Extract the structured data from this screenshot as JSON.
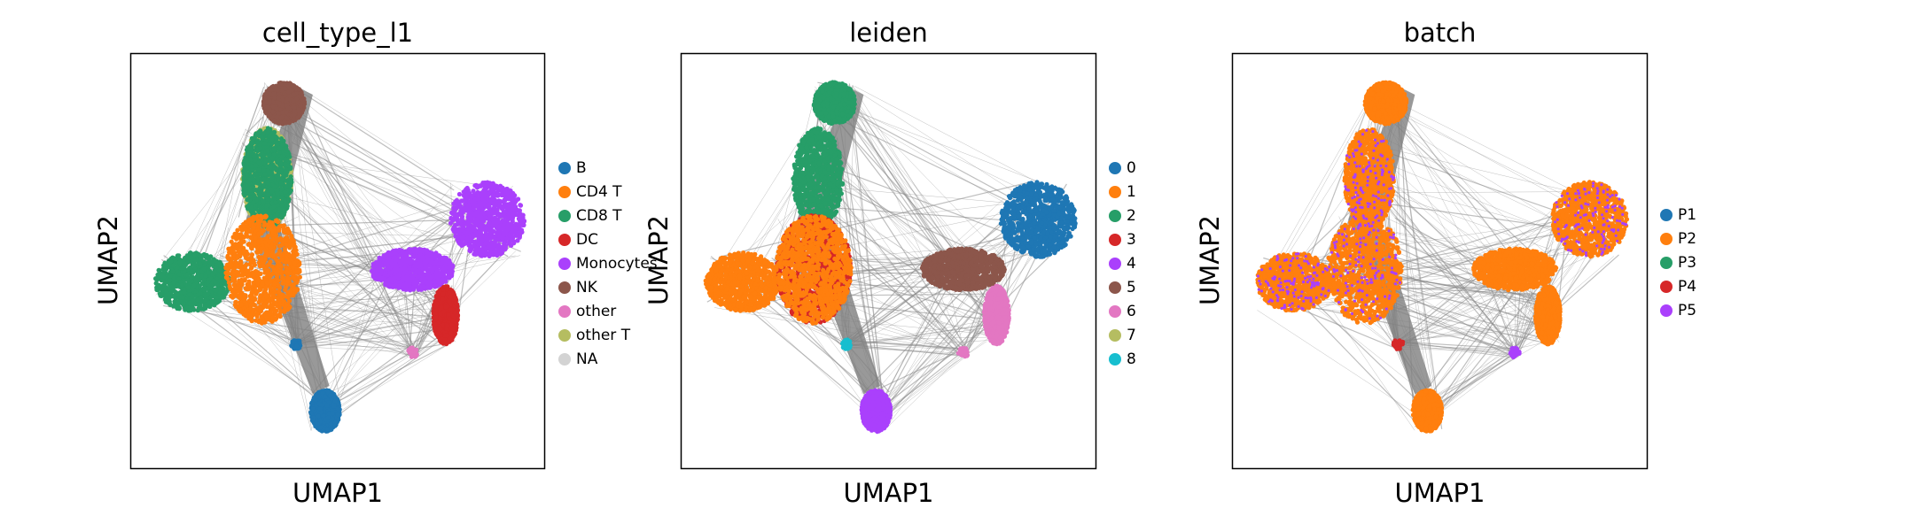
{
  "chart_data": [
    {
      "type": "scatter",
      "title": "cell_type_l1",
      "xlabel": "UMAP1",
      "ylabel": "UMAP2",
      "grid": false,
      "legend_placement": "right",
      "categories": [
        "B",
        "CD4 T",
        "CD8 T",
        "DC",
        "Monocytes",
        "NK",
        "other",
        "other T",
        "NA"
      ],
      "colors": [
        "#1f77b4",
        "#ff7f0e",
        "#279e68",
        "#d62728",
        "#aa40fc",
        "#8c564b",
        "#e377c2",
        "#b5bd61",
        "#d3d3d3"
      ]
    },
    {
      "type": "scatter",
      "title": "leiden",
      "xlabel": "UMAP1",
      "ylabel": "UMAP2",
      "grid": false,
      "legend_placement": "right",
      "categories": [
        "0",
        "1",
        "2",
        "3",
        "4",
        "5",
        "6",
        "7",
        "8"
      ],
      "colors": [
        "#1f77b4",
        "#ff7f0e",
        "#279e68",
        "#d62728",
        "#aa40fc",
        "#8c564b",
        "#e377c2",
        "#b5bd61",
        "#17becf"
      ]
    },
    {
      "type": "scatter",
      "title": "batch",
      "xlabel": "UMAP1",
      "ylabel": "UMAP2",
      "grid": false,
      "legend_placement": "right",
      "categories": [
        "P1",
        "P2",
        "P3",
        "P4",
        "P5"
      ],
      "colors": [
        "#1f77b4",
        "#ff7f0e",
        "#279e68",
        "#d62728",
        "#aa40fc"
      ]
    }
  ]
}
